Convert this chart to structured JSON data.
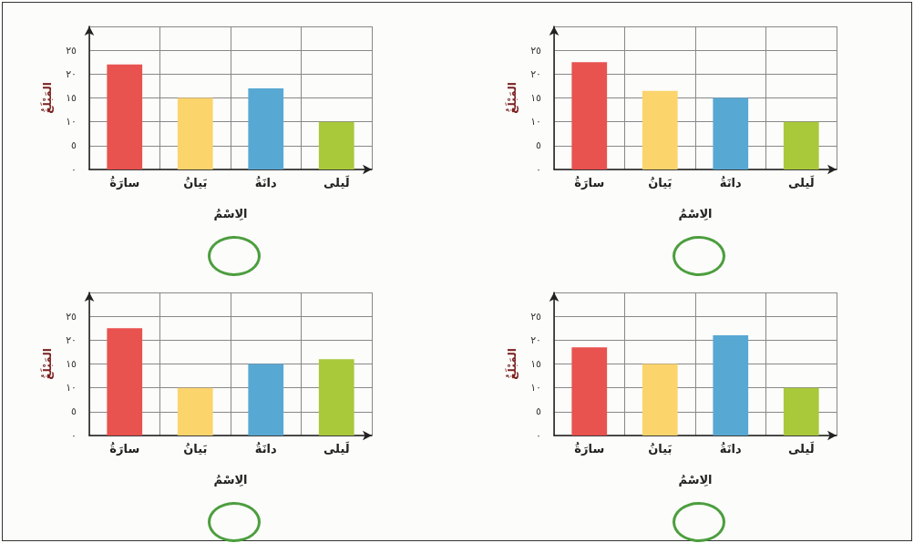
{
  "chart_data": [
    {
      "type": "bar",
      "xlabel": "الِاسْمُ",
      "ylabel": "المَبْلَغُ",
      "categories": [
        "سارَةُ",
        "بَيانُ",
        "دانَةُ",
        "لَيلى"
      ],
      "values": [
        22,
        15,
        17,
        10
      ],
      "colors": [
        "#e8524f",
        "#fbd46c",
        "#58a8d4",
        "#a9c93a"
      ],
      "ylim": [
        0,
        30
      ],
      "yticks": [
        {
          "value": 0,
          "label": "٠"
        },
        {
          "value": 5,
          "label": "٥"
        },
        {
          "value": 10,
          "label": "١٠"
        },
        {
          "value": 15,
          "label": "١٥"
        },
        {
          "value": 20,
          "label": "٢٠"
        },
        {
          "value": 25,
          "label": "٢٥"
        },
        {
          "value": 30,
          "label": null
        }
      ],
      "grid": true
    },
    {
      "type": "bar",
      "xlabel": "الِاسْمُ",
      "ylabel": "المَبْلَغُ",
      "categories": [
        "سارَةُ",
        "بَيانُ",
        "دانَةُ",
        "لَيلى"
      ],
      "values": [
        22.5,
        16.5,
        15,
        10
      ],
      "colors": [
        "#e8524f",
        "#fbd46c",
        "#58a8d4",
        "#a9c93a"
      ],
      "ylim": [
        0,
        30
      ],
      "yticks": [
        {
          "value": 0,
          "label": "٠"
        },
        {
          "value": 5,
          "label": "٥"
        },
        {
          "value": 10,
          "label": "١٠"
        },
        {
          "value": 15,
          "label": "١٥"
        },
        {
          "value": 20,
          "label": "٢٠"
        },
        {
          "value": 25,
          "label": "٢٥"
        },
        {
          "value": 30,
          "label": null
        }
      ],
      "grid": true
    },
    {
      "type": "bar",
      "xlabel": "الِاسْمُ",
      "ylabel": "المَبْلَغُ",
      "categories": [
        "سارَةُ",
        "بَيانُ",
        "دانَةُ",
        "لَيلى"
      ],
      "values": [
        22.5,
        10,
        15,
        16
      ],
      "colors": [
        "#e8524f",
        "#fbd46c",
        "#58a8d4",
        "#a9c93a"
      ],
      "ylim": [
        0,
        30
      ],
      "yticks": [
        {
          "value": 0,
          "label": "٠"
        },
        {
          "value": 5,
          "label": "٥"
        },
        {
          "value": 10,
          "label": "١٠"
        },
        {
          "value": 15,
          "label": "١٥"
        },
        {
          "value": 20,
          "label": "٢٠"
        },
        {
          "value": 25,
          "label": "٢٥"
        },
        {
          "value": 30,
          "label": null
        }
      ],
      "grid": true
    },
    {
      "type": "bar",
      "xlabel": "الِاسْمُ",
      "ylabel": "المَبْلَغُ",
      "categories": [
        "سارَةُ",
        "بَيانُ",
        "دانَةُ",
        "لَيلى"
      ],
      "values": [
        18.5,
        15,
        21,
        10
      ],
      "colors": [
        "#e8524f",
        "#fbd46c",
        "#58a8d4",
        "#a9c93a"
      ],
      "ylim": [
        0,
        30
      ],
      "yticks": [
        {
          "value": 0,
          "label": "٠"
        },
        {
          "value": 5,
          "label": "٥"
        },
        {
          "value": 10,
          "label": "١٠"
        },
        {
          "value": 15,
          "label": "١٥"
        },
        {
          "value": 20,
          "label": "٢٠"
        },
        {
          "value": 25,
          "label": "٢٥"
        },
        {
          "value": 30,
          "label": null
        }
      ],
      "grid": true
    }
  ]
}
